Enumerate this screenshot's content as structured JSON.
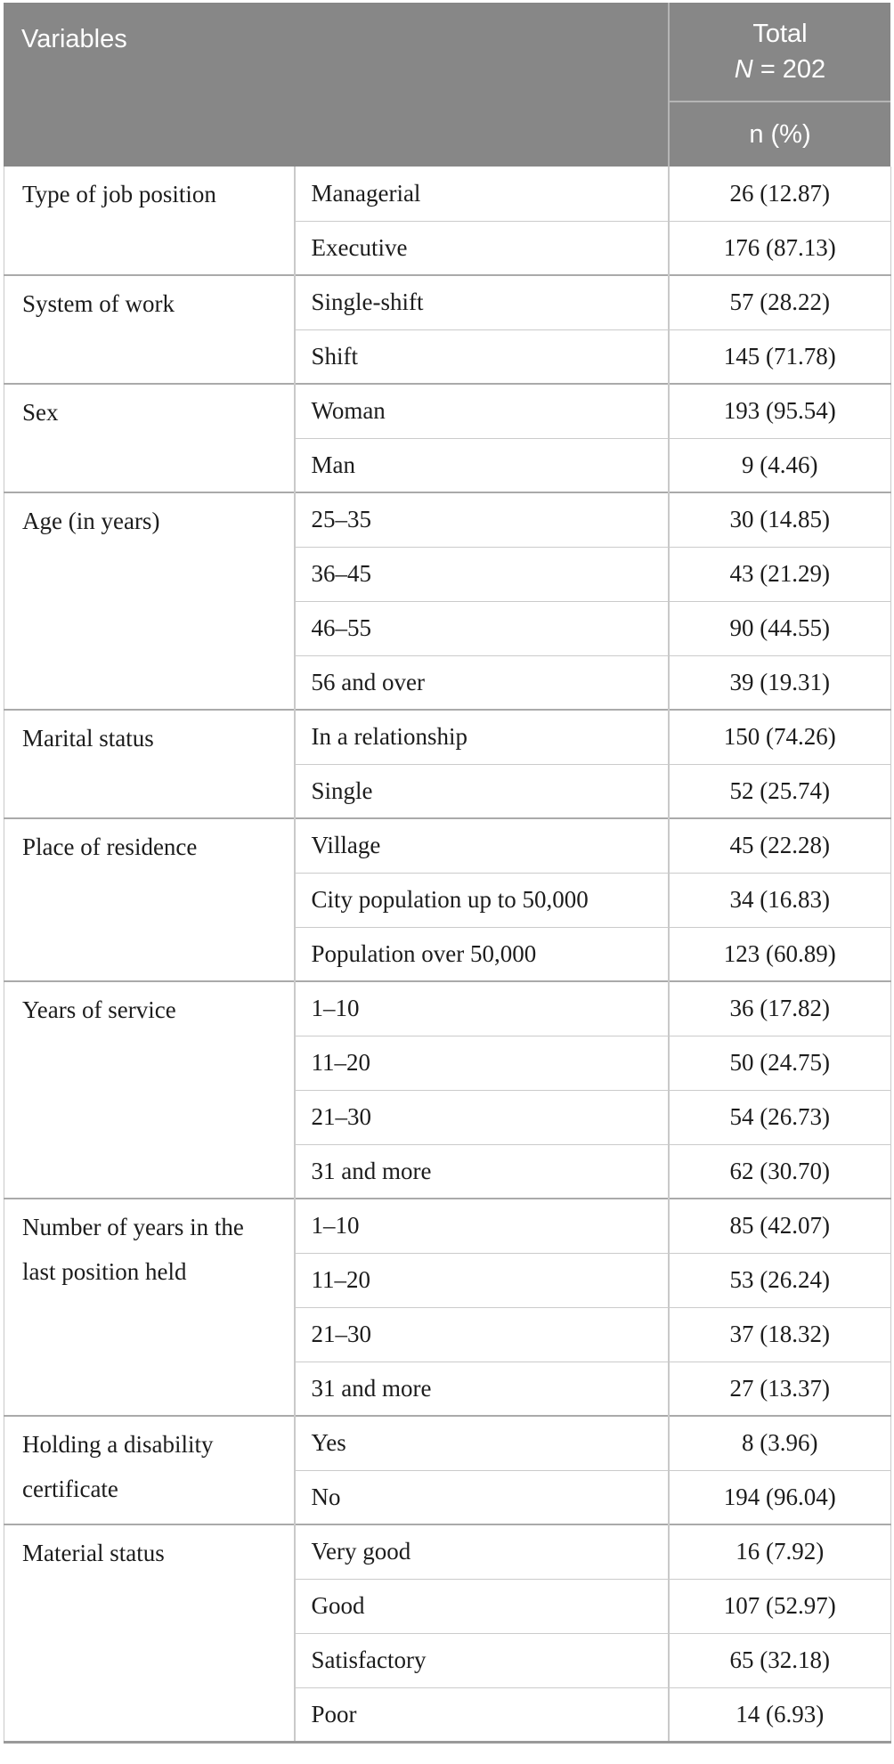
{
  "header": {
    "variables_label": "Variables",
    "total_label": "Total",
    "n_label": "N",
    "n_value": "= 202",
    "unit_label": "n (%)"
  },
  "colors": {
    "header_bg": "#878787",
    "header_text": "#ffffff",
    "header_divider": "#b5b5b5",
    "inner_line": "#cbcbcb",
    "group_line": "#aaaaaa",
    "side_line": "#c9c9c9",
    "bottom_line": "#9a9a9a",
    "body_text": "#1c1c1c"
  },
  "table": {
    "groups": [
      {
        "label": "Type of job position",
        "rows": [
          {
            "category": "Managerial",
            "value": "26 (12.87)"
          },
          {
            "category": "Executive",
            "value": "176 (87.13)"
          }
        ]
      },
      {
        "label": "System of work",
        "rows": [
          {
            "category": "Single-shift",
            "value": "57 (28.22)"
          },
          {
            "category": "Shift",
            "value": "145 (71.78)"
          }
        ]
      },
      {
        "label": "Sex",
        "rows": [
          {
            "category": "Woman",
            "value": "193 (95.54)"
          },
          {
            "category": "Man",
            "value": "9 (4.46)"
          }
        ]
      },
      {
        "label": "Age (in years)",
        "rows": [
          {
            "category": "25–35",
            "value": "30 (14.85)"
          },
          {
            "category": "36–45",
            "value": "43 (21.29)"
          },
          {
            "category": "46–55",
            "value": "90 (44.55)"
          },
          {
            "category": "56 and over",
            "value": "39 (19.31)"
          }
        ]
      },
      {
        "label": "Marital status",
        "rows": [
          {
            "category": "In a relationship",
            "value": "150 (74.26)"
          },
          {
            "category": "Single",
            "value": "52 (25.74)"
          }
        ]
      },
      {
        "label": "Place of residence",
        "rows": [
          {
            "category": "Village",
            "value": "45 (22.28)"
          },
          {
            "category": "City population up to 50,000",
            "value": "34 (16.83)"
          },
          {
            "category": "Population over 50,000",
            "value": "123 (60.89)"
          }
        ]
      },
      {
        "label": "Years of service",
        "rows": [
          {
            "category": "1–10",
            "value": "36 (17.82)"
          },
          {
            "category": "11–20",
            "value": "50 (24.75)"
          },
          {
            "category": "21–30",
            "value": "54 (26.73)"
          },
          {
            "category": "31 and more",
            "value": "62 (30.70)"
          }
        ]
      },
      {
        "label": "Number of years in the last position held",
        "rows": [
          {
            "category": "1–10",
            "value": "85 (42.07)"
          },
          {
            "category": "11–20",
            "value": "53 (26.24)"
          },
          {
            "category": "21–30",
            "value": "37 (18.32)"
          },
          {
            "category": "31 and more",
            "value": "27 (13.37)"
          }
        ]
      },
      {
        "label": "Holding a disability certificate",
        "rows": [
          {
            "category": "Yes",
            "value": "8 (3.96)"
          },
          {
            "category": "No",
            "value": "194 (96.04)"
          }
        ]
      },
      {
        "label": "Material status",
        "rows": [
          {
            "category": "Very good",
            "value": "16 (7.92)"
          },
          {
            "category": "Good",
            "value": "107 (52.97)"
          },
          {
            "category": "Satisfactory",
            "value": "65 (32.18)"
          },
          {
            "category": "Poor",
            "value": "14 (6.93)"
          }
        ]
      }
    ]
  }
}
